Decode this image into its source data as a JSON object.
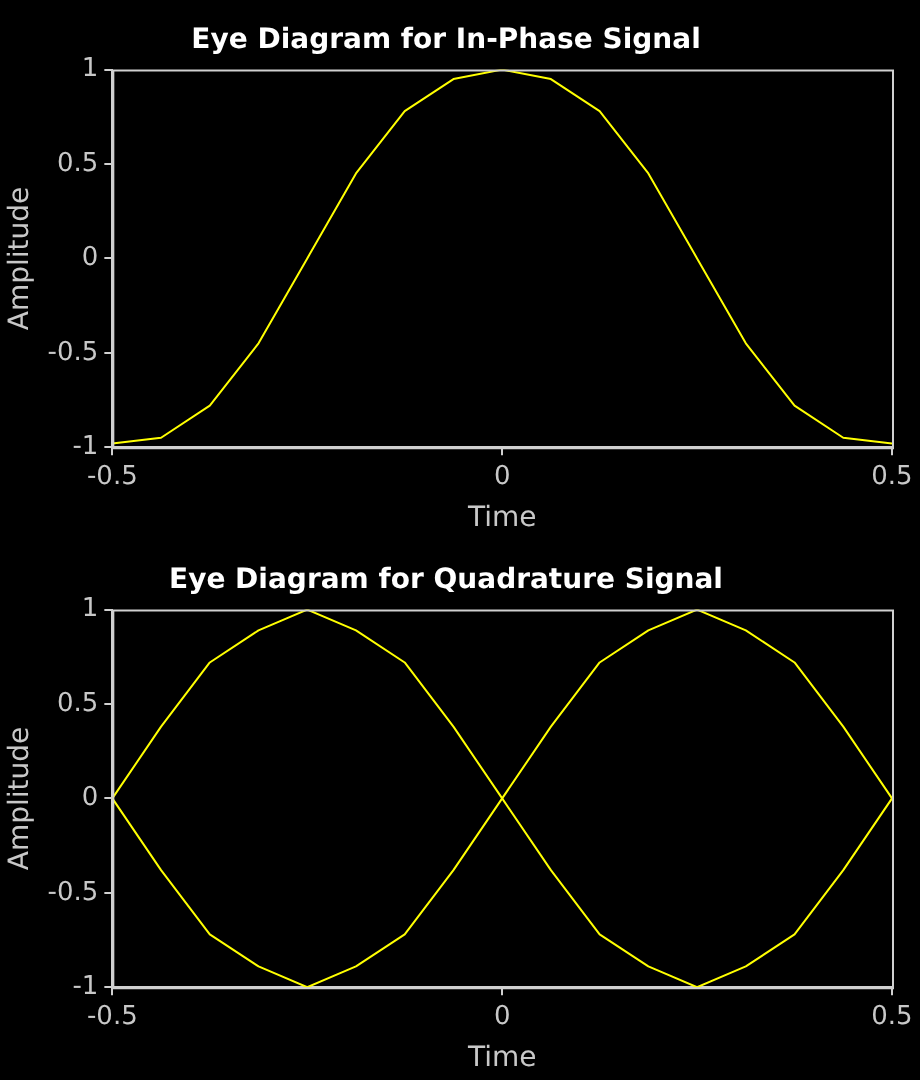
{
  "chart_data": [
    {
      "type": "line",
      "title": "Eye Diagram for In-Phase Signal",
      "xlabel": "Time",
      "ylabel": "Amplitude",
      "x": [
        -0.5,
        -0.4375,
        -0.375,
        -0.3125,
        -0.25,
        -0.1875,
        -0.125,
        -0.0625,
        0,
        0.0625,
        0.125,
        0.1875,
        0.25,
        0.3125,
        0.375,
        0.4375,
        0.5
      ],
      "series": [
        {
          "color": "#ffff00",
          "values": [
            -0.98,
            -0.95,
            -0.78,
            -0.45,
            0,
            0.45,
            0.78,
            0.95,
            1,
            0.95,
            0.78,
            0.45,
            0,
            -0.45,
            -0.78,
            -0.95,
            -0.98
          ]
        }
      ],
      "xlim": [
        -0.5,
        0.5
      ],
      "xticks": [
        -0.5,
        0,
        0.5
      ],
      "ylim": [
        -1,
        1
      ],
      "yticks": [
        -1,
        -0.5,
        0,
        0.5,
        1
      ],
      "grid": false,
      "legend": false,
      "marker": "none",
      "line_style": "solid"
    },
    {
      "type": "line",
      "title": "Eye Diagram for Quadrature Signal",
      "xlabel": "Time",
      "ylabel": "Amplitude",
      "x": [
        -0.5,
        -0.4375,
        -0.375,
        -0.3125,
        -0.25,
        -0.1875,
        -0.125,
        -0.0625,
        0,
        0.0625,
        0.125,
        0.1875,
        0.25,
        0.3125,
        0.375,
        0.4375,
        0.5
      ],
      "series": [
        {
          "color": "#ffff00",
          "values": [
            0,
            0.38,
            0.72,
            0.89,
            1,
            0.89,
            0.72,
            0.38,
            0,
            -0.38,
            -0.72,
            -0.89,
            -1,
            -0.89,
            -0.72,
            -0.38,
            0
          ]
        },
        {
          "color": "#ffff00",
          "values": [
            0,
            -0.38,
            -0.72,
            -0.89,
            -1,
            -0.89,
            -0.72,
            -0.38,
            0,
            0.38,
            0.72,
            0.89,
            1,
            0.89,
            0.72,
            0.38,
            0
          ]
        }
      ],
      "xlim": [
        -0.5,
        0.5
      ],
      "xticks": [
        -0.5,
        0,
        0.5
      ],
      "ylim": [
        -1,
        1
      ],
      "yticks": [
        -1,
        -0.5,
        0,
        0.5,
        1
      ],
      "grid": false,
      "legend": false,
      "marker": "none",
      "line_style": "solid"
    }
  ]
}
